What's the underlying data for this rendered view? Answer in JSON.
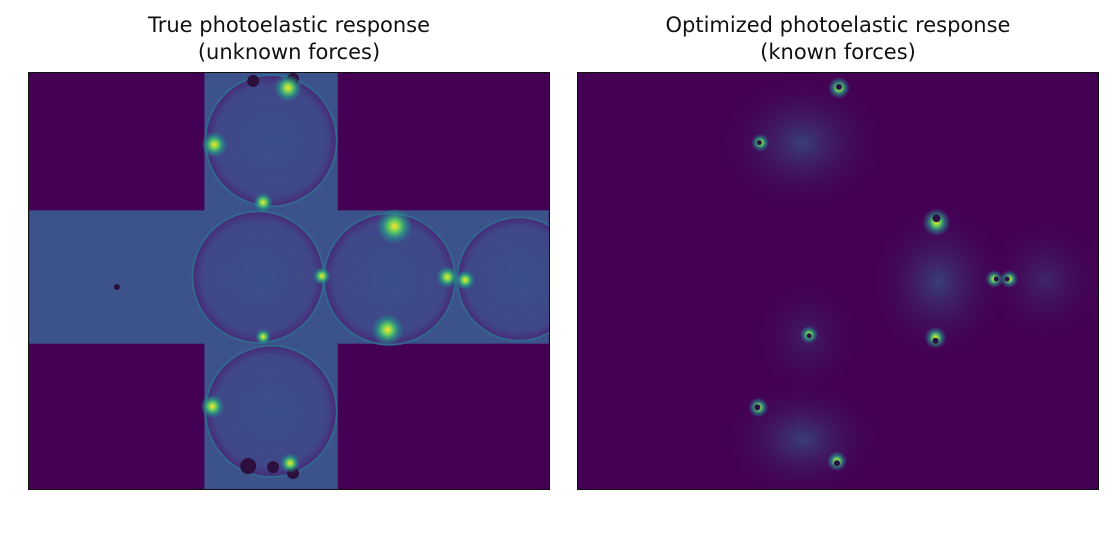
{
  "panels": [
    {
      "title_line1": "True photoelastic response",
      "title_line2": "(unknown forces)",
      "image": "photoelastic-image-true"
    },
    {
      "title_line1": "Optimized photoelastic response",
      "title_line2": "(known forces)",
      "image": "photoelastic-image-optimized"
    }
  ],
  "colors": {
    "background": "#440154",
    "cross_body": "#3b528b",
    "disk_fill": "#3e4a89",
    "highlight": "#fde725",
    "mid": "#21918c",
    "frame": "#111111"
  }
}
